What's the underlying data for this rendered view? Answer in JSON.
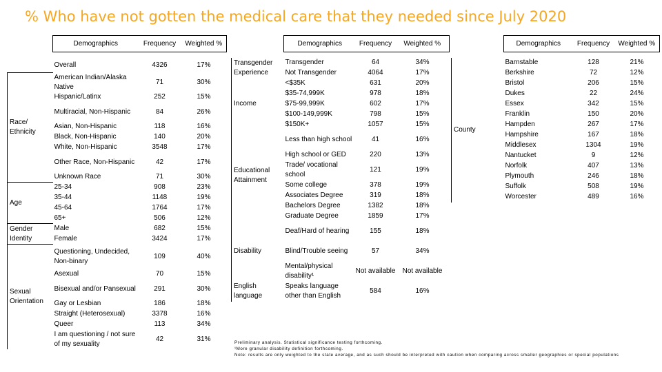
{
  "title": "% Who have not gotten the medical care that they needed since July 2020",
  "headers": {
    "demographics": "Demographics",
    "frequency": "Frequency",
    "weighted": "Weighted %"
  },
  "table1": {
    "overall": {
      "label": "Overall",
      "freq": "4326",
      "pct": "17%"
    },
    "race": {
      "category": "Race/ Ethnicity",
      "rows": [
        {
          "label": "American Indian/Alaska Native",
          "freq": "71",
          "pct": "30%"
        },
        {
          "label": "Hispanic/Latinx",
          "freq": "252",
          "pct": "15%"
        },
        {
          "label": "Multiracial, Non-Hispanic",
          "freq": "84",
          "pct": "26%"
        },
        {
          "label": "Asian, Non-Hispanic",
          "freq": "118",
          "pct": "16%"
        },
        {
          "label": "Black, Non-Hispanic",
          "freq": "140",
          "pct": "20%"
        },
        {
          "label": "White, Non-Hispanic",
          "freq": "3548",
          "pct": "17%"
        },
        {
          "label": "Other Race, Non-Hispanic",
          "freq": "42",
          "pct": "17%"
        },
        {
          "label": "Unknown Race",
          "freq": "71",
          "pct": "30%"
        }
      ]
    },
    "age": {
      "category": "Age",
      "rows": [
        {
          "label": "25-34",
          "freq": "908",
          "pct": "23%"
        },
        {
          "label": "35-44",
          "freq": "1148",
          "pct": "19%"
        },
        {
          "label": "45-64",
          "freq": "1764",
          "pct": "17%"
        },
        {
          "label": "65+",
          "freq": "506",
          "pct": "12%"
        }
      ]
    },
    "gender": {
      "category": "Gender Identity",
      "rows": [
        {
          "label": "Male",
          "freq": "682",
          "pct": "15%"
        },
        {
          "label": "Female",
          "freq": "3424",
          "pct": "17%"
        }
      ]
    },
    "orientation": {
      "category": "Sexual Orientation",
      "rows": [
        {
          "label": "Questioning, Undecided, Non-binary",
          "freq": "109",
          "pct": "40%"
        },
        {
          "label": "Asexual",
          "freq": "70",
          "pct": "15%"
        },
        {
          "label": "Bisexual and/or Pansexual",
          "freq": "291",
          "pct": "30%"
        },
        {
          "label": "Gay or Lesbian",
          "freq": "186",
          "pct": "18%"
        },
        {
          "label": "Straight (Heterosexual)",
          "freq": "3378",
          "pct": "16%"
        },
        {
          "label": "Queer",
          "freq": "113",
          "pct": "34%"
        },
        {
          "label": "I am questioning / not sure of my sexuality",
          "freq": "42",
          "pct": "31%"
        }
      ]
    }
  },
  "table2": {
    "transgender": {
      "category": "Transgender Experience",
      "rows": [
        {
          "label": "Transgender",
          "freq": "64",
          "pct": "34%"
        },
        {
          "label": "Not Transgender",
          "freq": "4064",
          "pct": "17%"
        }
      ]
    },
    "income": {
      "category": "Income",
      "rows": [
        {
          "label": "<$35K",
          "freq": "631",
          "pct": "20%"
        },
        {
          "label": "$35-74,999K",
          "freq": "978",
          "pct": "18%"
        },
        {
          "label": "$75-99,999K",
          "freq": "602",
          "pct": "17%"
        },
        {
          "label": "$100-149,999K",
          "freq": "798",
          "pct": "15%"
        },
        {
          "label": "$150K+",
          "freq": "1057",
          "pct": "15%"
        }
      ]
    },
    "education": {
      "category": "Educational Attainment",
      "rows": [
        {
          "label": "Less than high school",
          "freq": "41",
          "pct": "16%"
        },
        {
          "label": "High school or GED",
          "freq": "220",
          "pct": "13%"
        },
        {
          "label": "Trade/ vocational school",
          "freq": "121",
          "pct": "19%"
        },
        {
          "label": "Some college",
          "freq": "378",
          "pct": "19%"
        },
        {
          "label": "Associates Degree",
          "freq": "319",
          "pct": "18%"
        },
        {
          "label": "Bachelors Degree",
          "freq": "1382",
          "pct": "18%"
        },
        {
          "label": "Graduate Degree",
          "freq": "1859",
          "pct": "17%"
        }
      ]
    },
    "disability": {
      "category": "Disability",
      "rows": [
        {
          "label": "Deaf/Hard of hearing",
          "freq": "155",
          "pct": "18%"
        },
        {
          "label": "Blind/Trouble seeing",
          "freq": "57",
          "pct": "34%"
        },
        {
          "label": "Mental/physical disability¹",
          "freq": "Not available",
          "pct": "Not available"
        }
      ]
    },
    "language": {
      "category": "English language",
      "rows": [
        {
          "label": "Speaks language other than English",
          "freq": "584",
          "pct": "16%"
        }
      ]
    }
  },
  "table3": {
    "category": "County",
    "rows": [
      {
        "label": "Barnstable",
        "freq": "128",
        "pct": "21%"
      },
      {
        "label": "Berkshire",
        "freq": "72",
        "pct": "12%"
      },
      {
        "label": "Bristol",
        "freq": "206",
        "pct": "15%"
      },
      {
        "label": "Dukes",
        "freq": "22",
        "pct": "24%"
      },
      {
        "label": "Essex",
        "freq": "342",
        "pct": "15%"
      },
      {
        "label": "Franklin",
        "freq": "150",
        "pct": "20%"
      },
      {
        "label": "Hampden",
        "freq": "267",
        "pct": "17%"
      },
      {
        "label": "Hampshire",
        "freq": "167",
        "pct": "18%"
      },
      {
        "label": "Middlesex",
        "freq": "1304",
        "pct": "19%"
      },
      {
        "label": "Nantucket",
        "freq": "9",
        "pct": "12%"
      },
      {
        "label": "Norfolk",
        "freq": "407",
        "pct": "13%"
      },
      {
        "label": "Plymouth",
        "freq": "246",
        "pct": "18%"
      },
      {
        "label": "Suffolk",
        "freq": "508",
        "pct": "19%"
      },
      {
        "label": "Worcester",
        "freq": "489",
        "pct": "16%"
      }
    ]
  },
  "notes": [
    "Preliminary analysis. Statistical significance testing forthcoming.",
    "¹More granular disability definition forthcoming.",
    "Note: results are only weighted to the state average, and as such should be interpreted with caution when comparing across smaller geographies or special populations"
  ],
  "colors": {
    "title": "#f5a623"
  }
}
